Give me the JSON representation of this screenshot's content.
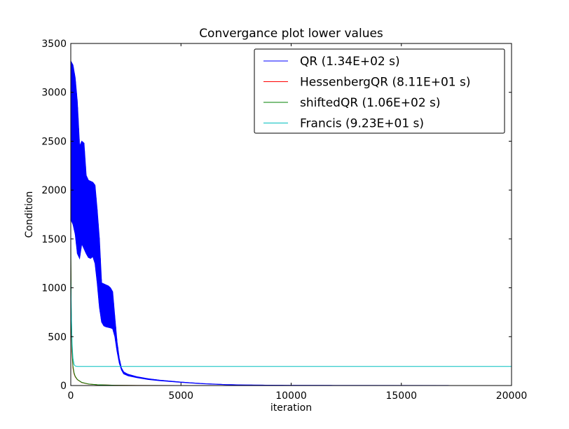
{
  "chart_data": {
    "type": "line",
    "title": "Convergance plot lower values",
    "xlabel": "iteration",
    "ylabel": "Condition",
    "xlim": [
      0,
      20000
    ],
    "ylim": [
      0,
      3500
    ],
    "xticks": [
      0,
      5000,
      10000,
      15000,
      20000
    ],
    "yticks": [
      0,
      500,
      1000,
      1500,
      2000,
      2500,
      3000,
      3500
    ],
    "grid": false,
    "legend_position": "top-right",
    "series": [
      {
        "name": "QR (1.34E+02 s)",
        "color": "#0000ff",
        "style": "oscillating band",
        "upper": [
          [
            0,
            3320
          ],
          [
            100,
            3280
          ],
          [
            200,
            3150
          ],
          [
            300,
            2900
          ],
          [
            400,
            2450
          ],
          [
            500,
            2500
          ],
          [
            600,
            2480
          ],
          [
            700,
            2150
          ],
          [
            800,
            2100
          ],
          [
            900,
            2090
          ],
          [
            1000,
            2080
          ],
          [
            1100,
            2050
          ],
          [
            1200,
            1800
          ],
          [
            1300,
            1500
          ],
          [
            1400,
            1050
          ],
          [
            1500,
            1040
          ],
          [
            1600,
            1030
          ],
          [
            1700,
            1020
          ],
          [
            1800,
            1000
          ],
          [
            1900,
            960
          ],
          [
            2000,
            700
          ],
          [
            2100,
            450
          ],
          [
            2200,
            280
          ],
          [
            2300,
            180
          ],
          [
            2400,
            140
          ],
          [
            2600,
            115
          ],
          [
            3000,
            90
          ],
          [
            3500,
            70
          ],
          [
            4000,
            55
          ],
          [
            5000,
            35
          ],
          [
            6000,
            20
          ],
          [
            7000,
            10
          ],
          [
            8000,
            5
          ],
          [
            10000,
            2
          ],
          [
            12000,
            1
          ],
          [
            20000,
            0
          ]
        ],
        "lower": [
          [
            0,
            1700
          ],
          [
            100,
            1650
          ],
          [
            200,
            1550
          ],
          [
            300,
            1350
          ],
          [
            400,
            1300
          ],
          [
            500,
            1450
          ],
          [
            600,
            1400
          ],
          [
            700,
            1350
          ],
          [
            800,
            1310
          ],
          [
            900,
            1300
          ],
          [
            1000,
            1320
          ],
          [
            1100,
            1250
          ],
          [
            1200,
            1050
          ],
          [
            1300,
            800
          ],
          [
            1400,
            650
          ],
          [
            1500,
            610
          ],
          [
            1600,
            600
          ],
          [
            1700,
            595
          ],
          [
            1800,
            590
          ],
          [
            1900,
            580
          ],
          [
            2000,
            500
          ],
          [
            2100,
            350
          ],
          [
            2200,
            230
          ],
          [
            2300,
            160
          ],
          [
            2400,
            120
          ],
          [
            2600,
            100
          ],
          [
            3000,
            80
          ],
          [
            3500,
            62
          ],
          [
            4000,
            50
          ],
          [
            5000,
            32
          ],
          [
            6000,
            18
          ],
          [
            7000,
            9
          ],
          [
            8000,
            4
          ],
          [
            10000,
            2
          ],
          [
            12000,
            1
          ],
          [
            20000,
            0
          ]
        ]
      },
      {
        "name": "HessenbergQR (8.11E+01 s)",
        "color": "#ff0000",
        "points": [
          [
            0,
            1300
          ],
          [
            20,
            700
          ],
          [
            50,
            350
          ],
          [
            100,
            180
          ],
          [
            150,
            120
          ],
          [
            200,
            90
          ],
          [
            300,
            60
          ],
          [
            500,
            30
          ],
          [
            800,
            15
          ],
          [
            1200,
            8
          ],
          [
            2000,
            3
          ],
          [
            3000,
            1
          ],
          [
            5000,
            0
          ],
          [
            10000,
            0
          ]
        ]
      },
      {
        "name": "shiftedQR (1.06E+02 s)",
        "color": "#008000",
        "points": [
          [
            0,
            1500
          ],
          [
            20,
            800
          ],
          [
            50,
            400
          ],
          [
            100,
            200
          ],
          [
            150,
            130
          ],
          [
            200,
            95
          ],
          [
            300,
            62
          ],
          [
            500,
            32
          ],
          [
            800,
            16
          ],
          [
            1200,
            8
          ],
          [
            2000,
            3
          ],
          [
            3000,
            1
          ],
          [
            5000,
            0
          ],
          [
            10000,
            0
          ],
          [
            12000,
            0
          ]
        ]
      },
      {
        "name": "Francis (9.23E+01 s)",
        "color": "#00bfbf",
        "points": [
          [
            0,
            1100
          ],
          [
            30,
            700
          ],
          [
            60,
            420
          ],
          [
            100,
            280
          ],
          [
            150,
            215
          ],
          [
            200,
            200
          ],
          [
            300,
            195
          ],
          [
            500,
            195
          ],
          [
            20000,
            195
          ]
        ]
      }
    ]
  }
}
